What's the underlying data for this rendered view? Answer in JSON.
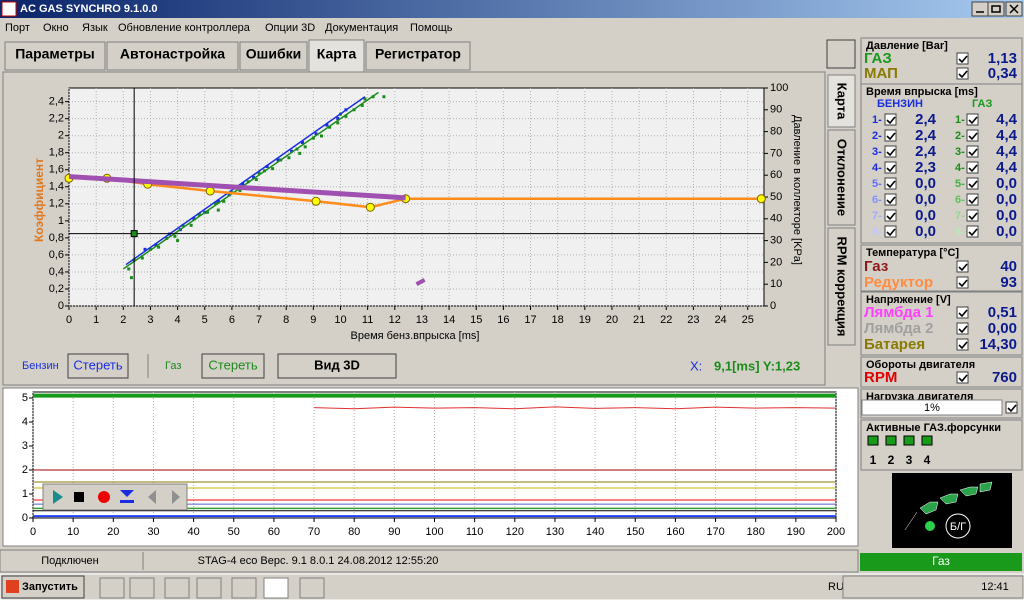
{
  "window": {
    "title": "AC GAS SYNCHRO  9.1.0.0"
  },
  "menu": [
    "Порт",
    "Окно",
    "Язык",
    "Обновление контроллера",
    "Опции 3D",
    "Документация",
    "Помощь"
  ],
  "tabs": [
    "Параметры",
    "Автонастройка",
    "Ошибки",
    "Карта",
    "Регистратор"
  ],
  "side_tabs": [
    "Карта",
    "Отклонение",
    "RPM коррекция"
  ],
  "map_chart": {
    "type": "line",
    "x_label": "Время бенз.впрыска [ms]",
    "y_label": "Коэффициент",
    "y2_label": "Давление в коллекторе [KPa]",
    "xlim": [
      0,
      25.6
    ],
    "xticks": [
      0,
      1,
      2,
      3,
      4,
      5,
      6,
      7,
      8,
      9,
      10,
      11,
      12,
      13,
      14,
      15,
      16,
      17,
      18,
      19,
      20,
      21,
      22,
      23,
      24,
      25
    ],
    "ylim": [
      0,
      2.56
    ],
    "yticks": [
      0,
      {
        "value": 0.2,
        "label": "0,2"
      },
      {
        "value": 0.4,
        "label": "0,4"
      },
      {
        "value": 0.6,
        "label": "0,6"
      },
      {
        "value": 0.8,
        "label": "0,8"
      },
      1,
      {
        "value": 1.2,
        "label": "1,2"
      },
      {
        "value": 1.4,
        "label": "1,4"
      },
      {
        "value": 1.6,
        "label": "1,6"
      },
      {
        "value": 1.8,
        "label": "1,8"
      },
      2,
      {
        "value": 2.2,
        "label": "2,2"
      },
      {
        "value": 2.4,
        "label": "2,4"
      }
    ],
    "y2lim": [
      0,
      100
    ],
    "y2ticks": [
      0,
      10,
      20,
      30,
      40,
      50,
      60,
      70,
      80,
      90,
      100
    ],
    "grid": true,
    "cursor": {
      "x": 2.4,
      "y": 0.85
    },
    "series": [
      {
        "color": "#1a8c1a",
        "axis": "y2",
        "line_width": 0,
        "marker": "dot",
        "x": [
          2.2,
          2.4,
          2.7,
          3.0,
          3.3,
          3.6,
          3.9,
          4.2,
          4.5,
          4.8,
          5.1,
          5.4,
          5.7,
          6.0,
          6.3,
          6.6,
          6.9,
          7.2,
          7.5,
          7.8,
          8.1,
          8.4,
          8.7,
          9.0,
          9.3,
          9.6,
          9.9,
          10.2,
          10.5,
          10.8,
          11.2,
          2.3,
          4.0,
          5.5,
          7.0,
          8.5,
          10.0,
          11.6,
          10.9
        ],
        "values": [
          17,
          21,
          22,
          26,
          27,
          31,
          32,
          37,
          37,
          42,
          43,
          47,
          48,
          52,
          53,
          57,
          58,
          62,
          63,
          67,
          68,
          72,
          73,
          77,
          78,
          82,
          84,
          87,
          90,
          92,
          96,
          13,
          30,
          44,
          61,
          70,
          88,
          96,
          95
        ]
      },
      {
        "color": "#1a2ee0",
        "axis": "y2",
        "line_width": 0,
        "marker": "dot",
        "x": [
          2.8,
          3.2,
          3.7,
          4.1,
          4.6,
          5.0,
          5.5,
          5.9,
          6.4,
          6.8,
          7.3,
          7.7,
          8.2,
          8.6,
          9.1,
          9.5,
          9.9,
          10.2
        ],
        "values": [
          26,
          28,
          33,
          35,
          40,
          43,
          48,
          51,
          56,
          59,
          64,
          67,
          71,
          75,
          79,
          83,
          86,
          90
        ]
      },
      {
        "color": "#1a2ee0",
        "axis": "y2",
        "line_width": 1.5,
        "x": [
          2.1,
          10.9
        ],
        "values": [
          19,
          96
        ]
      },
      {
        "color": "#1a8c1a",
        "axis": "y2",
        "line_width": 1.5,
        "x": [
          2.0,
          11.4
        ],
        "values": [
          17,
          98
        ]
      },
      {
        "color": "#a050b0",
        "axis": "y2",
        "line_width": 4,
        "x": [
          12.8,
          13.1
        ],
        "values": [
          10,
          12
        ]
      },
      {
        "color": "#ff8c1a",
        "line_width": 2.5,
        "marker": "circle",
        "x": [
          0,
          1.4,
          2.9,
          5.2,
          9.1,
          11.1,
          12.4,
          25.5
        ],
        "values": [
          1.5,
          1.5,
          1.43,
          1.35,
          1.23,
          1.16,
          1.26,
          1.26
        ]
      },
      {
        "color": "#a050b0",
        "line_width": 5,
        "x": [
          0,
          12.4
        ],
        "values": [
          1.52,
          1.27
        ]
      }
    ]
  },
  "controls": {
    "petrol_label": "Бензин",
    "petrol_clear": "Стереть",
    "gas_label": "Газ",
    "gas_clear": "Стереть",
    "view3d": "Вид 3D",
    "cursor_x_label": "X:",
    "cursor_readout": "9,1[ms]  Y:1,23"
  },
  "recorder_chart": {
    "type": "line",
    "xlim": [
      0,
      200
    ],
    "xticks": [
      0,
      10,
      20,
      30,
      40,
      50,
      60,
      70,
      80,
      90,
      100,
      110,
      120,
      130,
      140,
      150,
      160,
      170,
      180,
      190,
      200
    ],
    "ylim": [
      0,
      5.25
    ],
    "yticks": [
      0,
      1,
      2,
      3,
      4,
      5
    ],
    "grid": true,
    "series": [
      {
        "color": "#1a9a1a",
        "line_width": 4,
        "x": [
          0,
          200
        ],
        "values": [
          5.1,
          5.1
        ]
      },
      {
        "color": "#e03030",
        "line_width": 1,
        "x": [
          70,
          80,
          90,
          100,
          110,
          120,
          130,
          140,
          150,
          160,
          170,
          180,
          190,
          200
        ],
        "values": [
          4.6,
          4.55,
          4.62,
          4.58,
          4.6,
          4.55,
          4.63,
          4.57,
          4.6,
          4.55,
          4.62,
          4.58,
          4.6,
          4.58
        ]
      },
      {
        "color": "#a00000",
        "line_width": 1,
        "x": [
          0,
          200
        ],
        "values": [
          2,
          2
        ]
      },
      {
        "color": "#8a7a00",
        "line_width": 1,
        "x": [
          0,
          200
        ],
        "values": [
          1.5,
          1.5
        ]
      },
      {
        "color": "#c8b400",
        "line_width": 1,
        "x": [
          0,
          200
        ],
        "values": [
          1.25,
          1.25
        ]
      },
      {
        "color": "#ff0000",
        "line_width": 1,
        "x": [
          0,
          200
        ],
        "values": [
          0.75,
          0.75
        ]
      },
      {
        "color": "#5060c0",
        "line_width": 1,
        "x": [
          0,
          200
        ],
        "values": [
          0.58,
          0.58
        ]
      },
      {
        "color": "#30a030",
        "line_width": 1.5,
        "x": [
          0,
          200
        ],
        "values": [
          0.4,
          0.4
        ]
      },
      {
        "color": "#000000",
        "line_width": 1,
        "x": [
          0,
          200
        ],
        "values": [
          0.3,
          0.3
        ]
      },
      {
        "color": "#2040ff",
        "line_width": 2,
        "x": [
          0,
          200
        ],
        "values": [
          0.08,
          0.08
        ]
      }
    ]
  },
  "pressure": {
    "title": "Давление [Bar]",
    "rows": [
      {
        "label": "ГАЗ",
        "value": "1,13"
      },
      {
        "label": "МАП",
        "value": "0,34"
      }
    ]
  },
  "injection": {
    "title": "Время впрыска [ms]",
    "petrol_header": "БЕНЗИН",
    "gas_header": "ГАЗ",
    "petrol": [
      {
        "label": "1-",
        "value": "2,4"
      },
      {
        "label": "2-",
        "value": "2,4"
      },
      {
        "label": "3-",
        "value": "2,4"
      },
      {
        "label": "4-",
        "value": "2,3"
      },
      {
        "label": "5-",
        "value": "0,0"
      },
      {
        "label": "6-",
        "value": "0,0"
      },
      {
        "label": "7-",
        "value": "0,0"
      },
      {
        "label": "8-",
        "value": "0,0"
      }
    ],
    "gas": [
      {
        "label": "1-",
        "value": "4,4"
      },
      {
        "label": "2-",
        "value": "4,4"
      },
      {
        "label": "3-",
        "value": "4,4"
      },
      {
        "label": "4-",
        "value": "4,4"
      },
      {
        "label": "5-",
        "value": "0,0"
      },
      {
        "label": "6-",
        "value": "0,0"
      },
      {
        "label": "7-",
        "value": "0,0"
      },
      {
        "label": "8-",
        "value": "0,0"
      }
    ]
  },
  "temperature": {
    "title": "Температура [°C]",
    "rows": [
      {
        "label": "Газ",
        "value": "40"
      },
      {
        "label": "Редуктор",
        "value": "93"
      }
    ]
  },
  "voltage": {
    "title": "Напряжение [V]",
    "rows": [
      {
        "label": "Лямбда 1",
        "value": "0,51"
      },
      {
        "label": "Лямбда 2",
        "value": "0,00"
      },
      {
        "label": "Батарея",
        "value": "14,30"
      }
    ]
  },
  "rpm": {
    "title": "Обороты двигателя",
    "rows": [
      {
        "label": "RPM",
        "value": "760"
      }
    ]
  },
  "load": {
    "title": "Нагрузка двигателя",
    "value": "1%"
  },
  "injectors": {
    "title": "Активные ГАЗ.форсунки",
    "labels": [
      "1",
      "2",
      "3",
      "4"
    ]
  },
  "fuel_indicator": {
    "label": "Б/Г"
  },
  "fuel_status": "Газ",
  "status_bar": [
    "Подключен",
    "STAG-4 eco   Верс. 9.1   8.0.1    24.08.2012 12:55:20"
  ],
  "taskbar": {
    "start": "Запустить",
    "language": "RU",
    "clock": "12:41"
  }
}
